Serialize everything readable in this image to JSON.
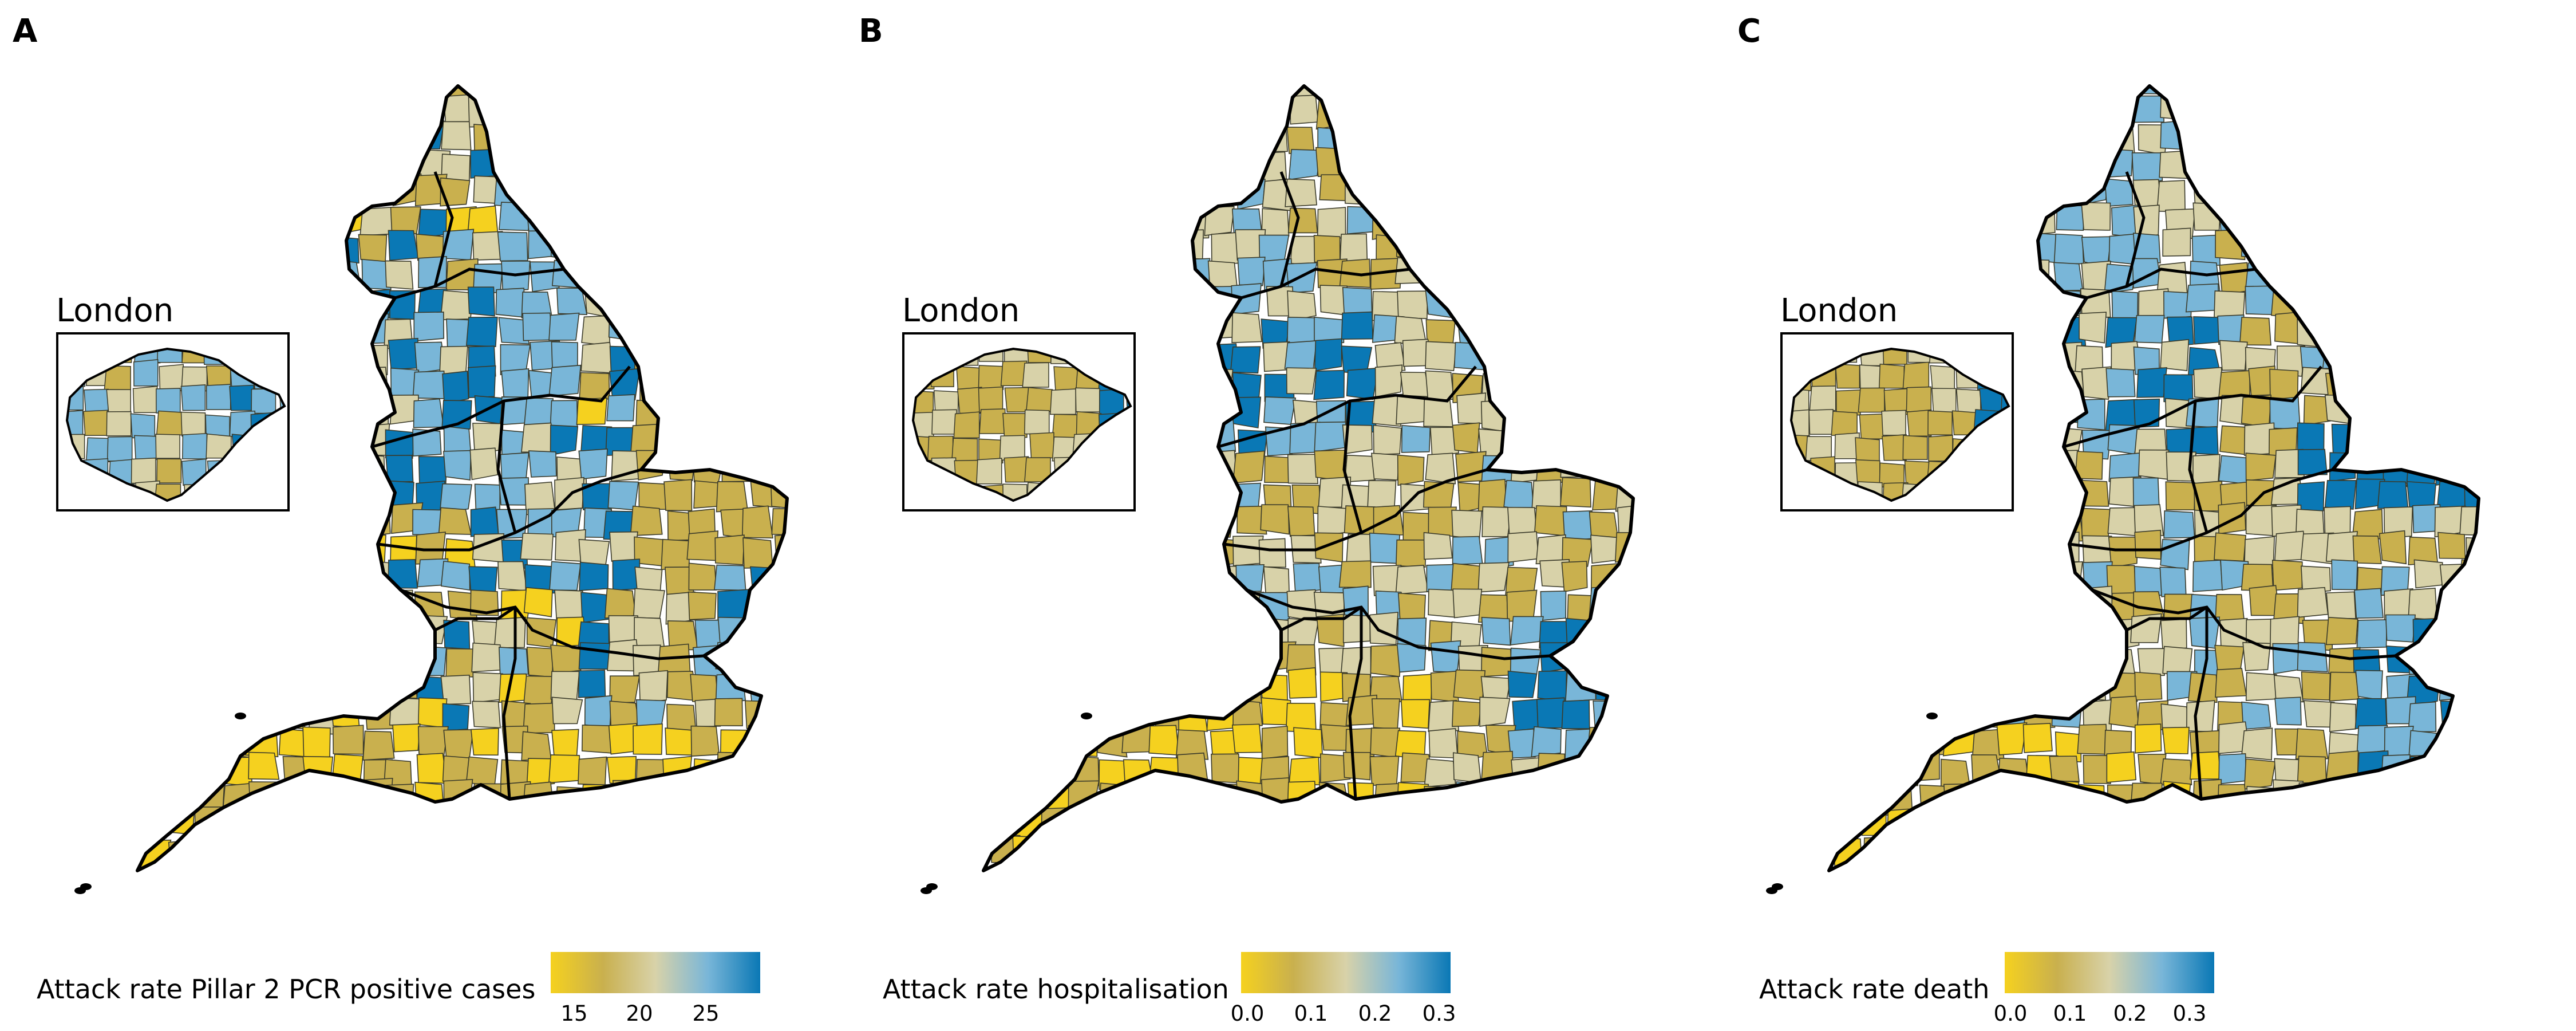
{
  "colors": {
    "low": "#f5d11f",
    "mid_low": "#c9b04e",
    "mid": "#d8d2a9",
    "mid_high": "#79b6d8",
    "high": "#0a78b5"
  },
  "inset_label": "London",
  "panels": [
    {
      "letter": "A",
      "legend_title": "Attack rate Pillar 2 PCR positive cases",
      "ticks": [
        "15",
        "20",
        "25"
      ]
    },
    {
      "letter": "B",
      "legend_title": "Attack rate hospitalisation",
      "ticks": [
        "0.0",
        "0.1",
        "0.2",
        "0.3"
      ]
    },
    {
      "letter": "C",
      "legend_title": "Attack rate death",
      "ticks": [
        "0.0",
        "0.1",
        "0.2",
        "0.3"
      ]
    }
  ]
}
